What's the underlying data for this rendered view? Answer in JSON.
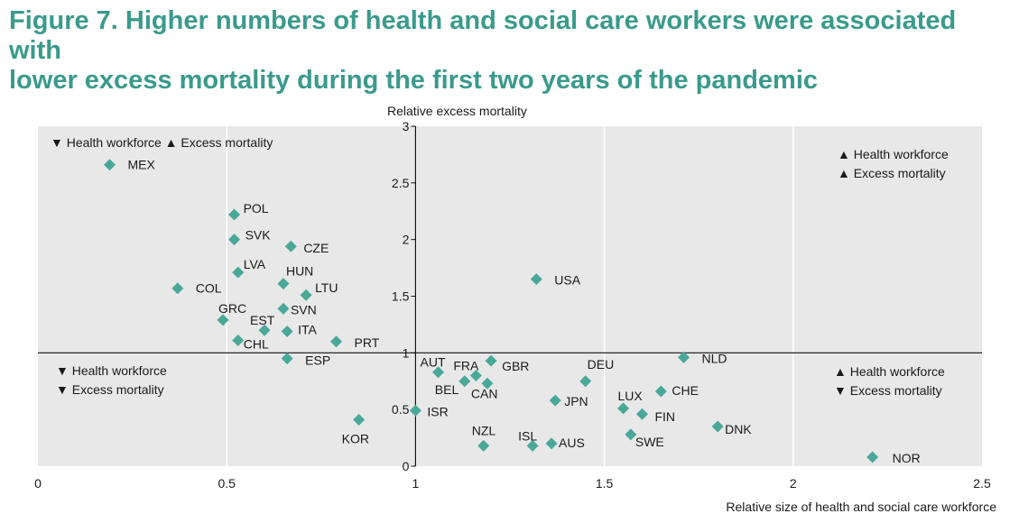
{
  "figure": {
    "title_line1": "Figure 7. Higher numbers of health and social care workers were associated with",
    "title_line2": "lower excess mortality during the first two years of the pandemic"
  },
  "chart_data": {
    "type": "scatter",
    "xlabel": "Relative size of health and social care workforce",
    "ylabel": "Relative excess mortality",
    "xlim": [
      0,
      2.5
    ],
    "ylim": [
      0,
      3
    ],
    "x_ticks": [
      "0",
      "0.5",
      "1",
      "1.5",
      "2",
      "2.5"
    ],
    "y_ticks": [
      "0",
      "0.5",
      "1",
      "1.5",
      "2",
      "2.5",
      "3"
    ],
    "reference_lines": {
      "x": 1,
      "y": 1
    },
    "marker_color": "#4aa899",
    "background_color": "#e8e8e8",
    "quadrants": {
      "top_left": [
        "▼ Health workforce",
        "▲ Excess mortality"
      ],
      "top_right": [
        "▲ Health workforce",
        "▲ Excess mortality"
      ],
      "bottom_left": [
        "▼ Health workforce",
        "▼ Excess mortality"
      ],
      "bottom_right": [
        "▲ Health workforce",
        "▼ Excess mortality"
      ]
    },
    "points": [
      {
        "label": "MEX",
        "x": 0.19,
        "y": 2.66
      },
      {
        "label": "POL",
        "x": 0.52,
        "y": 2.22
      },
      {
        "label": "SVK",
        "x": 0.52,
        "y": 2.0
      },
      {
        "label": "CZE",
        "x": 0.67,
        "y": 1.94
      },
      {
        "label": "LVA",
        "x": 0.53,
        "y": 1.71
      },
      {
        "label": "HUN",
        "x": 0.65,
        "y": 1.61
      },
      {
        "label": "COL",
        "x": 0.37,
        "y": 1.57
      },
      {
        "label": "LTU",
        "x": 0.71,
        "y": 1.51
      },
      {
        "label": "SVN",
        "x": 0.65,
        "y": 1.39
      },
      {
        "label": "GRC",
        "x": 0.49,
        "y": 1.29
      },
      {
        "label": "EST",
        "x": 0.6,
        "y": 1.2
      },
      {
        "label": "ITA",
        "x": 0.66,
        "y": 1.19
      },
      {
        "label": "CHL",
        "x": 0.53,
        "y": 1.11
      },
      {
        "label": "PRT",
        "x": 0.79,
        "y": 1.1
      },
      {
        "label": "ESP",
        "x": 0.66,
        "y": 0.95
      },
      {
        "label": "USA",
        "x": 1.32,
        "y": 1.65
      },
      {
        "label": "NLD",
        "x": 1.71,
        "y": 0.96
      },
      {
        "label": "GBR",
        "x": 1.2,
        "y": 0.93
      },
      {
        "label": "AUT",
        "x": 1.06,
        "y": 0.83
      },
      {
        "label": "FRA",
        "x": 1.16,
        "y": 0.8
      },
      {
        "label": "BEL",
        "x": 1.13,
        "y": 0.75
      },
      {
        "label": "CAN",
        "x": 1.19,
        "y": 0.73
      },
      {
        "label": "DEU",
        "x": 1.45,
        "y": 0.75
      },
      {
        "label": "CHE",
        "x": 1.65,
        "y": 0.66
      },
      {
        "label": "LUX",
        "x": 1.55,
        "y": 0.51
      },
      {
        "label": "JPN",
        "x": 1.37,
        "y": 0.58
      },
      {
        "label": "FIN",
        "x": 1.6,
        "y": 0.46
      },
      {
        "label": "ISR",
        "x": 1.0,
        "y": 0.49
      },
      {
        "label": "KOR",
        "x": 0.85,
        "y": 0.41
      },
      {
        "label": "DNK",
        "x": 1.8,
        "y": 0.35
      },
      {
        "label": "SWE",
        "x": 1.57,
        "y": 0.28
      },
      {
        "label": "NZL",
        "x": 1.18,
        "y": 0.18
      },
      {
        "label": "ISL",
        "x": 1.31,
        "y": 0.18
      },
      {
        "label": "AUS",
        "x": 1.36,
        "y": 0.2
      },
      {
        "label": "NOR",
        "x": 2.21,
        "y": 0.08
      }
    ]
  }
}
